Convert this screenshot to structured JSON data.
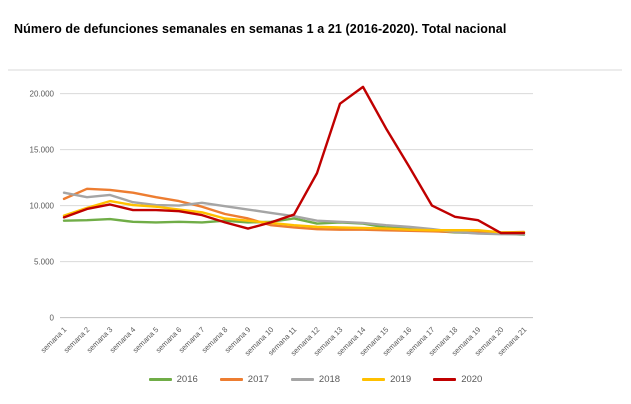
{
  "title": "Número de defunciones semanales en semanas 1 a 21 (2016-2020). Total nacional",
  "chart_data": {
    "type": "line",
    "categories": [
      "semana 1",
      "semana 2",
      "semana 3",
      "semana 4",
      "semana 5",
      "semana 6",
      "semana 7",
      "semana 8",
      "semana 9",
      "semana 10",
      "semana 11",
      "semana 12",
      "semana 13",
      "semana 14",
      "semana 15",
      "semana 16",
      "semana 17",
      "semana 18",
      "semana 19",
      "semana 20",
      "semana 21"
    ],
    "series": [
      {
        "name": "2016",
        "color": "#70AD47",
        "values": [
          8650,
          8700,
          8800,
          8550,
          8500,
          8550,
          8500,
          8650,
          8500,
          8550,
          8850,
          8400,
          8500,
          8400,
          8050,
          7950,
          7750,
          7600,
          7550,
          7500,
          7400
        ]
      },
      {
        "name": "2017",
        "color": "#ED7D31",
        "values": [
          10600,
          11500,
          11400,
          11150,
          10750,
          10400,
          9900,
          9250,
          8850,
          8250,
          8050,
          7900,
          7850,
          7850,
          7800,
          7750,
          7700,
          7650,
          7600,
          7600,
          7650
        ]
      },
      {
        "name": "2018",
        "color": "#A5A5A5",
        "values": [
          11150,
          10750,
          10950,
          10300,
          10050,
          10000,
          10250,
          9950,
          9650,
          9350,
          9050,
          8650,
          8550,
          8450,
          8250,
          8100,
          7900,
          7650,
          7500,
          7450,
          7450
        ]
      },
      {
        "name": "2019",
        "color": "#FFC000",
        "values": [
          9100,
          9800,
          10400,
          10050,
          9900,
          9650,
          9400,
          8850,
          8650,
          8450,
          8250,
          8100,
          8050,
          8000,
          7950,
          7850,
          7800,
          7800,
          7800,
          7600,
          7600
        ]
      },
      {
        "name": "2020",
        "color": "#C00000",
        "values": [
          8950,
          9700,
          10100,
          9600,
          9600,
          9500,
          9150,
          8500,
          7950,
          8500,
          9200,
          12900,
          19100,
          20600,
          16900,
          13500,
          10000,
          9000,
          8700,
          7550,
          7550
        ]
      }
    ],
    "ylim": [
      0,
      20000
    ],
    "yticks": [
      0,
      5000,
      10000,
      15000,
      20000
    ],
    "ytick_labels": [
      "0",
      "5.000",
      "10.000",
      "15.000",
      "20.000"
    ],
    "grid": "horizontal",
    "legend_position": "bottom"
  },
  "colors": {
    "gridline": "#D9D9D9",
    "axis_line": "#BFBFBF",
    "axis_text": "#595959",
    "frame_line": "#D9D9D9",
    "title_text": "#000000"
  }
}
